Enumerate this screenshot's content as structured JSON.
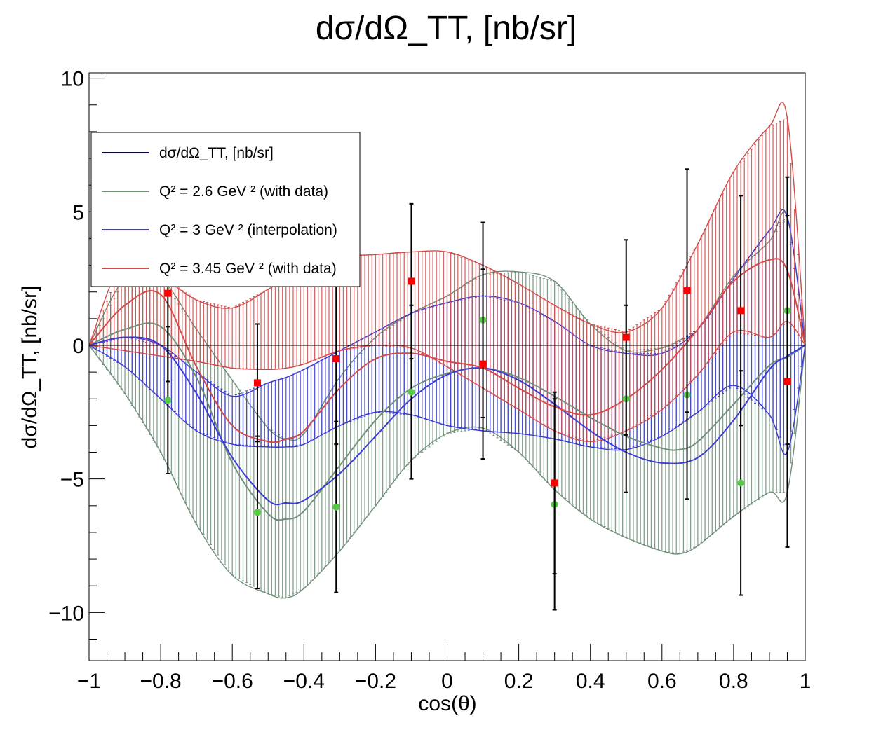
{
  "chart_data": {
    "type": "line",
    "title": "dσ/dΩ_TT, [nb/sr]",
    "xlabel": "cos(θ)",
    "ylabel": "dσ/dΩ_TT, [nb/sr]",
    "xlim": [
      -1,
      1
    ],
    "ylim": [
      -11.8,
      10.2
    ],
    "x_ticks": [
      -1,
      -0.8,
      -0.6,
      -0.4,
      -0.2,
      0,
      0.2,
      0.4,
      0.6,
      0.8,
      1
    ],
    "x_tick_labels": [
      "−1",
      "−0.8",
      "−0.6",
      "−0.4",
      "−0.2",
      "0",
      "0.2",
      "0.4",
      "0.6",
      "0.8",
      "1"
    ],
    "y_ticks": [
      10,
      5,
      0,
      -5,
      -10
    ],
    "y_tick_labels": [
      "10",
      "5",
      "0",
      "−5",
      "−10"
    ],
    "grid": false,
    "legend_position": "upper-left",
    "legend": [
      {
        "label": "dσ/dΩ_TT, [nb/sr]",
        "color": "#00007a"
      },
      {
        "label": "Q² = 2.6 GeV ² (with data)",
        "color": "#6f8f78"
      },
      {
        "label": "Q² = 3 GeV ² (interpolation)",
        "color": "#3b3bd6"
      },
      {
        "label": "Q² = 3.45 GeV ² (with data)",
        "color": "#d24b4b"
      }
    ],
    "series": [
      {
        "name": "Q² = 2.6 GeV ² (with data)",
        "color": "#6f8f78",
        "x": [
          -1.0,
          -0.9,
          -0.8,
          -0.7,
          -0.6,
          -0.5,
          -0.45,
          -0.4,
          -0.3,
          -0.2,
          -0.1,
          0.0,
          0.1,
          0.2,
          0.3,
          0.4,
          0.5,
          0.6,
          0.65,
          0.7,
          0.8,
          0.9,
          0.95,
          1.0
        ],
        "y": [
          0.0,
          0.6,
          0.7,
          -1.2,
          -4.4,
          -6.3,
          -6.5,
          -6.2,
          -4.5,
          -2.8,
          -1.6,
          -1.05,
          -0.85,
          -1.2,
          -1.9,
          -2.7,
          -3.4,
          -3.85,
          -3.9,
          -3.6,
          -2.2,
          -0.75,
          -0.45,
          0.0
        ],
        "y_low": [
          0.0,
          -1.8,
          -4.0,
          -6.7,
          -8.6,
          -9.3,
          -9.45,
          -9.1,
          -7.7,
          -6.0,
          -4.3,
          -3.3,
          -3.1,
          -4.0,
          -5.4,
          -6.5,
          -7.2,
          -7.7,
          -7.8,
          -7.5,
          -6.4,
          -5.5,
          -5.5,
          0.0
        ],
        "y_high": [
          0.0,
          2.5,
          2.5,
          0.6,
          -1.3,
          -3.1,
          -3.5,
          -3.3,
          -1.2,
          0.3,
          1.2,
          1.85,
          2.65,
          2.75,
          2.4,
          0.8,
          -0.2,
          -0.1,
          0.2,
          0.6,
          2.6,
          3.9,
          4.8,
          0.0
        ],
        "points": [
          {
            "x": -0.78,
            "y": -2.05,
            "err": 2.75
          },
          {
            "x": -0.53,
            "y": -6.25,
            "err": 2.85
          },
          {
            "x": -0.31,
            "y": -6.05,
            "err": 3.2
          },
          {
            "x": -0.1,
            "y": -1.75,
            "err": 3.25
          },
          {
            "x": 0.1,
            "y": 0.95,
            "err": 3.65
          },
          {
            "x": 0.3,
            "y": -5.95,
            "err": 3.95
          },
          {
            "x": 0.5,
            "y": -2.0,
            "err": 3.5
          },
          {
            "x": 0.67,
            "y": -1.85,
            "err": 3.9
          },
          {
            "x": 0.82,
            "y": -5.15,
            "err": 4.2
          },
          {
            "x": 0.95,
            "y": 1.3,
            "err": 5.0
          }
        ]
      },
      {
        "name": "Q² = 3 GeV ² (interpolation)",
        "color": "#3b3bd6",
        "x": [
          -1.0,
          -0.9,
          -0.8,
          -0.7,
          -0.6,
          -0.5,
          -0.45,
          -0.4,
          -0.3,
          -0.2,
          -0.1,
          0.0,
          0.1,
          0.2,
          0.3,
          0.4,
          0.5,
          0.6,
          0.7,
          0.8,
          0.9,
          0.95,
          1.0
        ],
        "y": [
          0.0,
          0.3,
          0.0,
          -1.8,
          -4.2,
          -5.8,
          -5.9,
          -5.8,
          -4.8,
          -3.4,
          -2.0,
          -1.1,
          -0.85,
          -1.3,
          -2.2,
          -3.2,
          -4.0,
          -4.4,
          -4.2,
          -2.8,
          -0.9,
          -0.4,
          0.0
        ],
        "y_low": [
          0.0,
          -0.8,
          -2.0,
          -3.2,
          -3.7,
          -3.8,
          -3.8,
          -3.7,
          -3.0,
          -2.5,
          -2.6,
          -3.0,
          -3.2,
          -3.3,
          -3.5,
          -3.8,
          -3.9,
          -3.4,
          -2.5,
          -1.5,
          -2.6,
          -4.0,
          0.0
        ],
        "y_high": [
          0.0,
          0.3,
          0.0,
          -1.0,
          -1.9,
          -1.4,
          -1.2,
          -0.9,
          -0.2,
          0.5,
          1.2,
          1.6,
          1.85,
          1.6,
          0.9,
          0.0,
          -0.3,
          -0.3,
          0.6,
          2.5,
          4.3,
          4.8,
          0.0
        ]
      },
      {
        "name": "Q² = 3.45 GeV ² (with data)",
        "color": "#d24b4b",
        "x": [
          -1.0,
          -0.9,
          -0.8,
          -0.7,
          -0.6,
          -0.5,
          -0.45,
          -0.4,
          -0.3,
          -0.2,
          -0.1,
          0.0,
          0.1,
          0.2,
          0.3,
          0.4,
          0.5,
          0.6,
          0.7,
          0.8,
          0.9,
          0.95,
          1.0
        ],
        "y": [
          0.0,
          1.5,
          1.9,
          -0.8,
          -3.0,
          -3.6,
          -3.5,
          -3.2,
          -1.6,
          -0.5,
          -0.3,
          -0.6,
          -0.85,
          -1.6,
          -2.3,
          -2.6,
          -2.0,
          -0.9,
          0.6,
          2.4,
          3.2,
          2.8,
          0.0
        ],
        "y_low": [
          0.0,
          -0.2,
          -0.4,
          -0.6,
          -0.85,
          -0.9,
          -0.85,
          -0.7,
          -0.2,
          0.0,
          -0.1,
          -0.8,
          -1.6,
          -2.4,
          -3.2,
          -3.6,
          -3.2,
          -2.4,
          -1.1,
          0.5,
          0.3,
          0.9,
          0.0
        ],
        "y_high": [
          0.0,
          3.3,
          2.6,
          1.7,
          1.4,
          2.1,
          2.5,
          2.8,
          3.3,
          3.4,
          3.5,
          3.5,
          3.0,
          2.3,
          1.5,
          0.8,
          0.5,
          1.4,
          3.8,
          6.5,
          8.2,
          8.5,
          0.0
        ],
        "points": [
          {
            "x": -0.78,
            "y": 1.95,
            "err": 3.3
          },
          {
            "x": -0.53,
            "y": -1.4,
            "err": 2.2
          },
          {
            "x": -0.31,
            "y": -0.5,
            "err": 3.2
          },
          {
            "x": -0.1,
            "y": 2.4,
            "err": 2.9
          },
          {
            "x": 0.1,
            "y": -0.7,
            "err": 3.55
          },
          {
            "x": 0.3,
            "y": -5.15,
            "err": 3.4
          },
          {
            "x": 0.5,
            "y": 0.3,
            "err": 3.65
          },
          {
            "x": 0.67,
            "y": 2.05,
            "err": 4.55
          },
          {
            "x": 0.82,
            "y": 1.3,
            "err": 4.3
          },
          {
            "x": 0.95,
            "y": -1.35,
            "err": 6.2
          }
        ]
      }
    ]
  }
}
